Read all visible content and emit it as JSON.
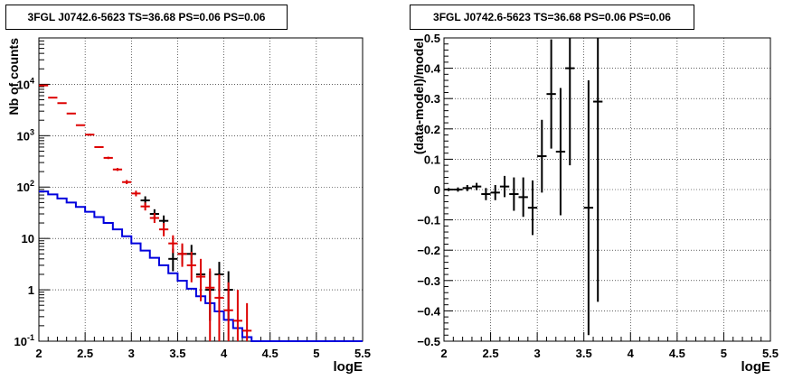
{
  "chart_data": [
    {
      "type": "histogram+errorbars",
      "title": "3FGL J0742.6-5623 TS=36.68 PS=0.06 PS=0.06",
      "xlabel": "logE",
      "ylabel": "Nb of counts",
      "xlim": [
        2,
        5.5
      ],
      "ylim": [
        0.1,
        80000
      ],
      "yscale": "log",
      "grid": true,
      "xticks": [
        "2",
        "2.5",
        "3",
        "3.5",
        "4",
        "4.5",
        "5",
        "5.5"
      ],
      "yticks": [
        {
          "v": 0.1,
          "label": "10^{-1}",
          "base": "10",
          "exp": "-1"
        },
        {
          "v": 1,
          "label": "1"
        },
        {
          "v": 10,
          "label": "10"
        },
        {
          "v": 100,
          "label": "10^{2}",
          "base": "10",
          "exp": "2"
        },
        {
          "v": 1000,
          "label": "10^{3}",
          "base": "10",
          "exp": "3"
        },
        {
          "v": 10000,
          "label": "10^{4}",
          "base": "10",
          "exp": "4"
        }
      ],
      "bin_width": 0.1,
      "series": [
        {
          "kind": "step",
          "color": "#0000dd",
          "bin_edges_start": 2.0,
          "values": [
            82,
            72,
            60,
            50,
            41,
            33,
            26,
            20,
            15,
            11,
            8.0,
            5.8,
            4.2,
            3.0,
            2.1,
            1.5,
            1.05,
            0.75,
            0.55,
            0.38,
            0.26,
            0.18,
            0.12,
            0.1,
            0.1,
            0.1,
            0.1,
            0.1,
            0.1,
            0.1,
            0.1,
            0.1,
            0.1,
            0.1,
            0.1
          ]
        },
        {
          "kind": "errorbar",
          "color": "#000000",
          "points": [
            {
              "x": 3.15,
              "y": 55,
              "lo": 45,
              "hi": 66
            },
            {
              "x": 3.25,
              "y": 30,
              "lo": 24,
              "hi": 37
            },
            {
              "x": 3.35,
              "y": 22,
              "lo": 17,
              "hi": 28
            },
            {
              "x": 3.45,
              "y": 4.0,
              "lo": 2.3,
              "hi": 6.3
            },
            {
              "x": 3.55,
              "y": 5.0,
              "lo": 3.2,
              "hi": 7.5
            },
            {
              "x": 3.65,
              "y": 5.0,
              "lo": 3.2,
              "hi": 7.5
            },
            {
              "x": 3.75,
              "y": 2.0,
              "lo": 0.9,
              "hi": 3.5
            },
            {
              "x": 3.85,
              "y": 1.0,
              "lo": 0.25,
              "hi": 2.3
            },
            {
              "x": 3.95,
              "y": 2.0,
              "lo": 0.9,
              "hi": 3.5
            },
            {
              "x": 4.05,
              "y": 1.0,
              "lo": 0.25,
              "hi": 2.3
            }
          ]
        },
        {
          "kind": "errorbar",
          "color": "#dd0000",
          "points": [
            {
              "x": 2.05,
              "y": 9500,
              "lo": 9500,
              "hi": 9500
            },
            {
              "x": 2.15,
              "y": 5500,
              "lo": 5500,
              "hi": 5500
            },
            {
              "x": 2.25,
              "y": 4300,
              "lo": 4300,
              "hi": 4300
            },
            {
              "x": 2.35,
              "y": 2700,
              "lo": 2700,
              "hi": 2700
            },
            {
              "x": 2.45,
              "y": 1600,
              "lo": 1600,
              "hi": 1600
            },
            {
              "x": 2.55,
              "y": 1050,
              "lo": 1000,
              "hi": 1100
            },
            {
              "x": 2.65,
              "y": 600,
              "lo": 575,
              "hi": 625
            },
            {
              "x": 2.75,
              "y": 370,
              "lo": 350,
              "hi": 390
            },
            {
              "x": 2.85,
              "y": 220,
              "lo": 206,
              "hi": 235
            },
            {
              "x": 2.95,
              "y": 125,
              "lo": 114,
              "hi": 137
            },
            {
              "x": 3.05,
              "y": 75,
              "lo": 66,
              "hi": 85
            },
            {
              "x": 3.15,
              "y": 42,
              "lo": 35,
              "hi": 50
            },
            {
              "x": 3.25,
              "y": 25,
              "lo": 20,
              "hi": 31
            },
            {
              "x": 3.35,
              "y": 15,
              "lo": 11,
              "hi": 20
            },
            {
              "x": 3.45,
              "y": 8,
              "lo": 5.2,
              "hi": 11.5
            },
            {
              "x": 3.55,
              "y": 5,
              "lo": 2.8,
              "hi": 8.0
            },
            {
              "x": 3.65,
              "y": 3,
              "lo": 1.4,
              "hi": 5.5
            },
            {
              "x": 3.75,
              "y": 1.8,
              "lo": 0.6,
              "hi": 4.0
            },
            {
              "x": 3.85,
              "y": 1.1,
              "lo": 0.1,
              "hi": 2.6
            },
            {
              "x": 3.95,
              "y": 0.7,
              "lo": 0.1,
              "hi": 2.0
            },
            {
              "x": 4.05,
              "y": 0.4,
              "lo": 0.1,
              "hi": 1.4
            },
            {
              "x": 4.15,
              "y": 0.25,
              "lo": 0.1,
              "hi": 1.0
            },
            {
              "x": 4.25,
              "y": 0.16,
              "lo": 0.1,
              "hi": 0.55
            }
          ]
        }
      ]
    },
    {
      "type": "errorbar",
      "title": "3FGL J0742.6-5623 TS=36.68 PS=0.06 PS=0.06",
      "xlabel": "logE",
      "ylabel": "(data-model)/model",
      "xlim": [
        2,
        5.5
      ],
      "ylim": [
        -0.5,
        0.5
      ],
      "grid": true,
      "xticks": [
        "2",
        "2.5",
        "3",
        "3.5",
        "4",
        "4.5",
        "5",
        "5.5"
      ],
      "yticks": [
        "−0.5",
        "−0.4",
        "−0.3",
        "−0.2",
        "−0.1",
        "0",
        "0.1",
        "0.2",
        "0.3",
        "0.4",
        "0.5"
      ],
      "yticks_values": [
        -0.5,
        -0.4,
        -0.3,
        -0.2,
        -0.1,
        0,
        0.1,
        0.2,
        0.3,
        0.4,
        0.5
      ],
      "bin_width": 0.1,
      "series": [
        {
          "color": "#000000",
          "points": [
            {
              "x": 2.05,
              "y": 0.0,
              "err": 0.005
            },
            {
              "x": 2.15,
              "y": 0.0,
              "err": 0.007
            },
            {
              "x": 2.25,
              "y": 0.005,
              "err": 0.01
            },
            {
              "x": 2.35,
              "y": 0.01,
              "err": 0.012
            },
            {
              "x": 2.45,
              "y": -0.015,
              "err": 0.02
            },
            {
              "x": 2.55,
              "y": -0.01,
              "err": 0.025
            },
            {
              "x": 2.65,
              "y": 0.01,
              "err": 0.035
            },
            {
              "x": 2.75,
              "y": -0.015,
              "err": 0.055
            },
            {
              "x": 2.85,
              "y": -0.025,
              "err": 0.065
            },
            {
              "x": 2.95,
              "y": -0.06,
              "err": 0.09
            },
            {
              "x": 3.05,
              "y": 0.11,
              "err": 0.12
            },
            {
              "x": 3.15,
              "y": 0.315,
              "err": 0.18
            },
            {
              "x": 3.25,
              "y": 0.125,
              "err": 0.21
            },
            {
              "x": 3.35,
              "y": 0.4,
              "err": 0.32
            },
            {
              "x": 3.55,
              "y": -0.06,
              "err": 0.42
            },
            {
              "x": 3.65,
              "y": 0.29,
              "err": 0.66
            }
          ]
        }
      ]
    }
  ]
}
